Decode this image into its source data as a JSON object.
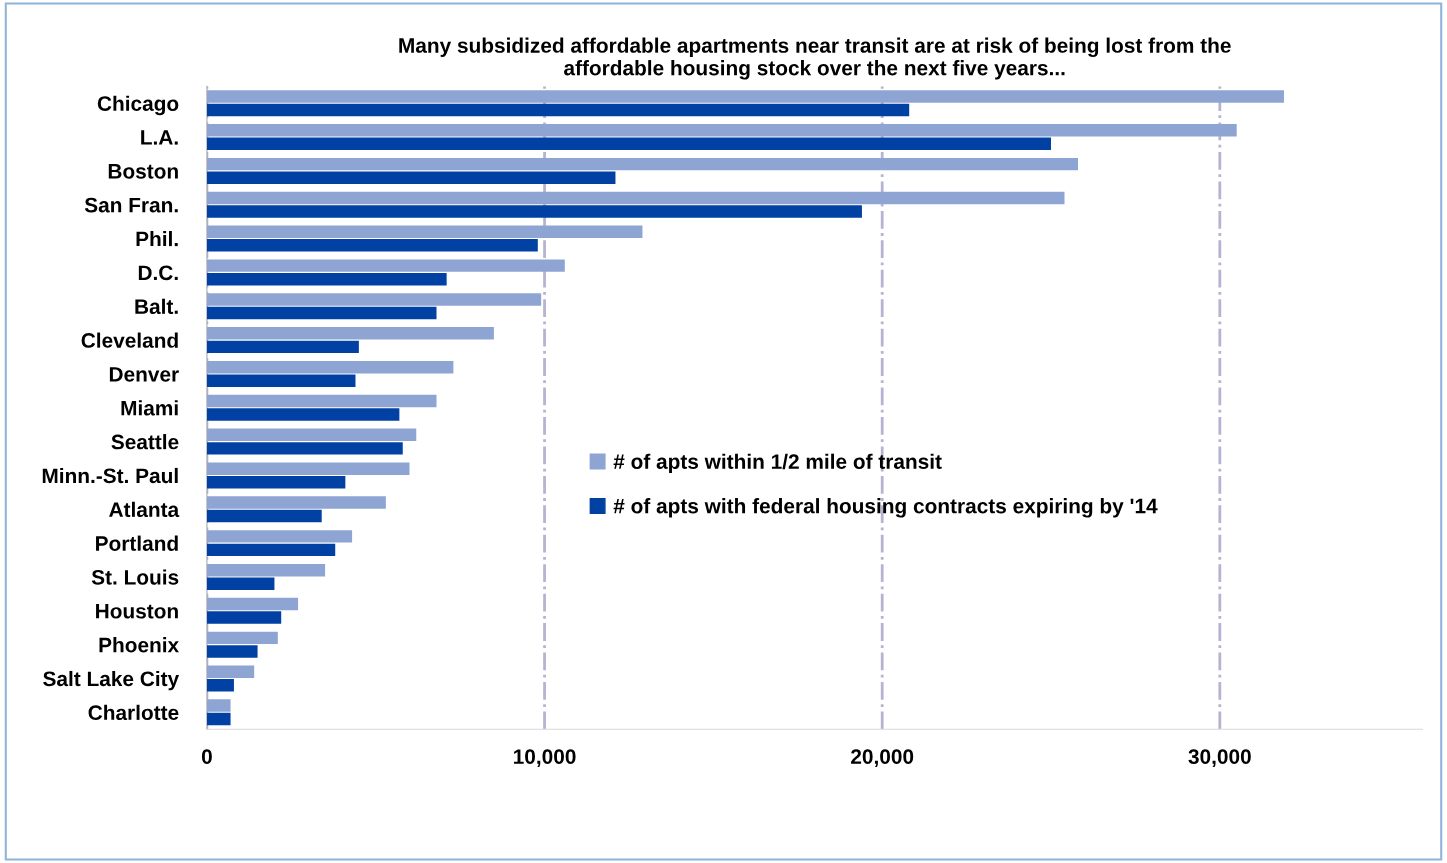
{
  "chart_data": {
    "type": "bar",
    "orientation": "horizontal",
    "title": "Many subsidized affordable apartments near transit are at risk of being lost from the\naffordable housing stock over the next five years...",
    "categories": [
      "Chicago",
      "L.A.",
      "Boston",
      "San Fran.",
      "Phil.",
      "D.C.",
      "Balt.",
      "Cleveland",
      "Denver",
      "Miami",
      "Seattle",
      "Minn.-St. Paul",
      "Atlanta",
      "Portland",
      "St. Louis",
      "Houston",
      "Phoenix",
      "Salt Lake City",
      "Charlotte"
    ],
    "series": [
      {
        "name": "# of apts within 1/2 mile of transit",
        "color": "#8ea5d4",
        "values": [
          31900,
          30500,
          25800,
          25400,
          12900,
          10600,
          9900,
          8500,
          7300,
          6800,
          6200,
          6000,
          5300,
          4300,
          3500,
          2700,
          2100,
          1400,
          700
        ]
      },
      {
        "name": "# of apts with federal housing contracts expiring by '14",
        "color": "#0041a3",
        "values": [
          20800,
          25000,
          12100,
          19400,
          9800,
          7100,
          6800,
          4500,
          4400,
          5700,
          5800,
          4100,
          3400,
          3800,
          2000,
          2200,
          1500,
          800,
          700
        ]
      }
    ],
    "xlim": [
      0,
      36000
    ],
    "xticks": [
      0,
      {
        "value": 10000,
        "label": "10,000"
      },
      {
        "value": 20000,
        "label": "20,000"
      },
      {
        "value": 30000,
        "label": "30,000"
      }
    ],
    "grid": "x",
    "legend": "right"
  }
}
